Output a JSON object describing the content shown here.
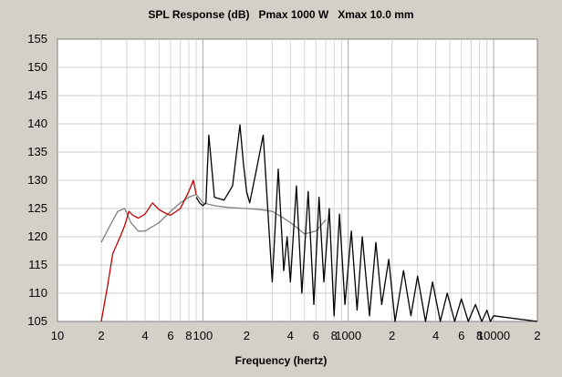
{
  "chart_data": {
    "type": "line",
    "title": "SPL Response (dB)   Pmax 1000 W   Xmax 10.0 mm",
    "xlabel": "Frequency (hertz)",
    "ylabel": "",
    "x_scale": "log",
    "xlim": [
      10,
      20000
    ],
    "ylim": [
      105,
      155
    ],
    "grid": true,
    "y_ticks": [
      155,
      150,
      145,
      140,
      135,
      130,
      125,
      120,
      115,
      110,
      105
    ],
    "x_tick_labels": [
      {
        "value": 10,
        "label": "10"
      },
      {
        "value": 20,
        "label": "2"
      },
      {
        "value": 40,
        "label": "4"
      },
      {
        "value": 60,
        "label": "6"
      },
      {
        "value": 80,
        "label": "8"
      },
      {
        "value": 100,
        "label": "100"
      },
      {
        "value": 200,
        "label": "2"
      },
      {
        "value": 400,
        "label": "4"
      },
      {
        "value": 600,
        "label": "6"
      },
      {
        "value": 800,
        "label": "8"
      },
      {
        "value": 1000,
        "label": "1000"
      },
      {
        "value": 2000,
        "label": "2"
      },
      {
        "value": 4000,
        "label": "4"
      },
      {
        "value": 6000,
        "label": "6"
      },
      {
        "value": 8000,
        "label": "8"
      },
      {
        "value": 10000,
        "label": "10000"
      },
      {
        "value": 20000,
        "label": "2"
      }
    ],
    "series": [
      {
        "color": "#c00000",
        "x": [
          20,
          22,
          24,
          27,
          29,
          31,
          33,
          36,
          40,
          45,
          50,
          55,
          60,
          70,
          80,
          86,
          90
        ],
        "y": [
          105,
          111,
          117,
          120,
          122,
          124.5,
          123.8,
          123.3,
          124,
          126,
          124.8,
          124.2,
          123.8,
          125,
          128,
          130,
          127.5
        ]
      },
      {
        "color": "#000000",
        "x": [
          90,
          95,
          100,
          105,
          110,
          120,
          140,
          160,
          180,
          190,
          200,
          210,
          230,
          260,
          300,
          330,
          360,
          380,
          400,
          440,
          480,
          530,
          580,
          630,
          680,
          740,
          800,
          870,
          950,
          1050,
          1150,
          1250,
          1400,
          1550,
          1700,
          1900,
          2100,
          2400,
          2700,
          3000,
          3400,
          3800,
          4300,
          4800,
          5400,
          6000,
          6700,
          7500,
          8300,
          9000,
          9500,
          10000,
          20000
        ],
        "y": [
          127,
          126,
          125.5,
          126,
          138,
          127,
          126.5,
          129,
          139.8,
          133,
          128,
          126,
          131,
          138,
          112,
          132,
          114,
          120,
          112,
          129,
          110,
          128,
          108,
          127,
          112,
          125,
          106,
          124,
          108,
          121,
          107,
          120,
          106,
          119,
          108,
          116,
          105,
          114,
          106,
          113,
          105,
          112,
          105,
          110,
          105,
          109,
          105,
          108,
          105,
          107,
          105,
          106,
          105
        ]
      },
      {
        "color": "#808080",
        "x": [
          20,
          23,
          26,
          29,
          32,
          36,
          40,
          45,
          50,
          60,
          70,
          80,
          90,
          100,
          120,
          150,
          200,
          250,
          300,
          350,
          400,
          450,
          500,
          600,
          700
        ],
        "y": [
          119,
          122,
          124.5,
          125,
          122.5,
          121,
          121,
          121.8,
          122.5,
          124.5,
          126,
          127,
          127.5,
          126,
          125.5,
          125.2,
          125,
          124.8,
          124.5,
          123.5,
          122.5,
          121.5,
          120.5,
          121,
          123
        ]
      }
    ]
  }
}
